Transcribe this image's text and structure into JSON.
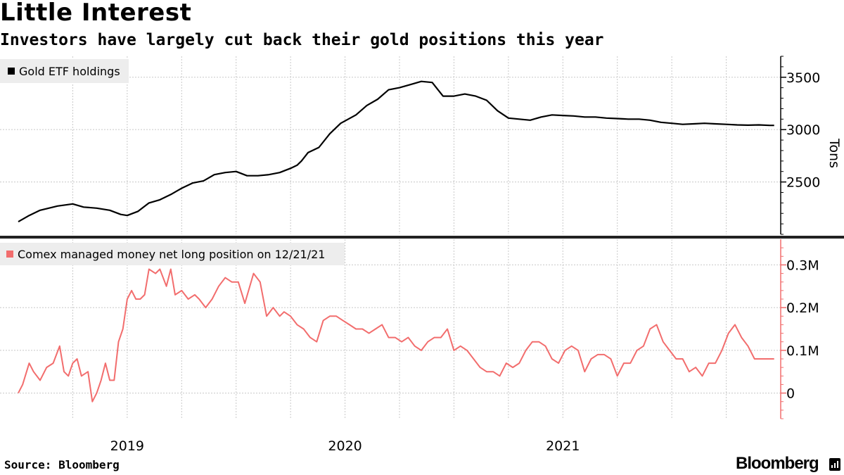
{
  "title": "Little Interest",
  "subtitle": "Investors have largely cut back their gold positions this year",
  "source": "Source: Bloomberg",
  "brand": "Bloomberg",
  "chart_data": [
    {
      "type": "line",
      "series": [
        {
          "name": "Gold ETF holdings",
          "color": "#000000",
          "x": [
            2018.5,
            2018.55,
            2018.6,
            2018.68,
            2018.75,
            2018.8,
            2018.86,
            2018.92,
            2018.97,
            2019.0,
            2019.05,
            2019.1,
            2019.15,
            2019.2,
            2019.25,
            2019.3,
            2019.35,
            2019.4,
            2019.45,
            2019.5,
            2019.55,
            2019.6,
            2019.65,
            2019.7,
            2019.75,
            2019.78,
            2019.8,
            2019.83,
            2019.88,
            2019.93,
            2019.98,
            2020.05,
            2020.1,
            2020.15,
            2020.2,
            2020.25,
            2020.3,
            2020.35,
            2020.4,
            2020.45,
            2020.5,
            2020.55,
            2020.6,
            2020.65,
            2020.7,
            2020.75,
            2020.8,
            2020.85,
            2020.9,
            2020.95,
            2021.0,
            2021.05,
            2021.1,
            2021.15,
            2021.2,
            2021.25,
            2021.3,
            2021.35,
            2021.4,
            2021.45,
            2021.5,
            2021.55,
            2021.6,
            2021.65,
            2021.7,
            2021.75,
            2021.8,
            2021.85,
            2021.9,
            2021.95,
            2021.97
          ],
          "values": [
            2120,
            2180,
            2230,
            2270,
            2290,
            2260,
            2250,
            2230,
            2190,
            2180,
            2220,
            2300,
            2330,
            2380,
            2440,
            2490,
            2510,
            2570,
            2590,
            2600,
            2560,
            2560,
            2570,
            2590,
            2630,
            2660,
            2700,
            2780,
            2830,
            2960,
            3060,
            3140,
            3230,
            3290,
            3380,
            3400,
            3430,
            3460,
            3450,
            3320,
            3320,
            3340,
            3320,
            3280,
            3180,
            3110,
            3100,
            3090,
            3120,
            3140,
            3135,
            3130,
            3120,
            3120,
            3110,
            3105,
            3100,
            3100,
            3090,
            3070,
            3060,
            3050,
            3055,
            3060,
            3055,
            3050,
            3045,
            3042,
            3045,
            3040,
            3040
          ]
        }
      ],
      "ylabel": "Tons",
      "ylim": [
        2000,
        3700
      ],
      "yticks": [
        {
          "value": 2500,
          "label": "2500"
        },
        {
          "value": 3000,
          "label": "3000"
        },
        {
          "value": 3500,
          "label": "3500"
        }
      ],
      "xlim": [
        2018.5,
        2022.0
      ],
      "xticks": [
        {
          "value": 2019,
          "label": "2019"
        },
        {
          "value": 2020,
          "label": "2020"
        },
        {
          "value": 2021,
          "label": "2021"
        }
      ],
      "legend": "top-left",
      "grid": true
    },
    {
      "type": "line",
      "series": [
        {
          "name": "Comex managed money net long position on 12/21/21",
          "color": "#f26d6d",
          "x": [
            2018.5,
            2018.52,
            2018.55,
            2018.57,
            2018.6,
            2018.63,
            2018.66,
            2018.69,
            2018.71,
            2018.73,
            2018.75,
            2018.77,
            2018.79,
            2018.82,
            2018.84,
            2018.86,
            2018.88,
            2018.9,
            2018.92,
            2018.94,
            2018.96,
            2018.98,
            2019.0,
            2019.02,
            2019.04,
            2019.06,
            2019.08,
            2019.1,
            2019.13,
            2019.15,
            2019.18,
            2019.2,
            2019.22,
            2019.25,
            2019.28,
            2019.31,
            2019.33,
            2019.36,
            2019.39,
            2019.42,
            2019.45,
            2019.48,
            2019.51,
            2019.54,
            2019.58,
            2019.61,
            2019.64,
            2019.67,
            2019.7,
            2019.72,
            2019.75,
            2019.78,
            2019.81,
            2019.84,
            2019.87,
            2019.9,
            2019.93,
            2019.96,
            2019.99,
            2020.02,
            2020.05,
            2020.08,
            2020.11,
            2020.14,
            2020.17,
            2020.2,
            2020.23,
            2020.26,
            2020.29,
            2020.32,
            2020.35,
            2020.38,
            2020.41,
            2020.44,
            2020.47,
            2020.5,
            2020.53,
            2020.56,
            2020.59,
            2020.62,
            2020.65,
            2020.68,
            2020.71,
            2020.74,
            2020.77,
            2020.8,
            2020.83,
            2020.86,
            2020.89,
            2020.92,
            2020.95,
            2020.98,
            2021.01,
            2021.04,
            2021.07,
            2021.1,
            2021.13,
            2021.16,
            2021.19,
            2021.22,
            2021.25,
            2021.28,
            2021.31,
            2021.34,
            2021.37,
            2021.4,
            2021.43,
            2021.46,
            2021.49,
            2021.52,
            2021.55,
            2021.58,
            2021.61,
            2021.64,
            2021.67,
            2021.7,
            2021.73,
            2021.76,
            2021.79,
            2021.82,
            2021.85,
            2021.88,
            2021.91,
            2021.94,
            2021.97
          ],
          "values": [
            0.0,
            0.02,
            0.07,
            0.05,
            0.03,
            0.06,
            0.07,
            0.11,
            0.05,
            0.04,
            0.07,
            0.08,
            0.04,
            0.05,
            -0.02,
            0.0,
            0.03,
            0.07,
            0.03,
            0.03,
            0.12,
            0.15,
            0.22,
            0.24,
            0.22,
            0.22,
            0.23,
            0.29,
            0.28,
            0.29,
            0.25,
            0.29,
            0.23,
            0.24,
            0.22,
            0.23,
            0.22,
            0.2,
            0.22,
            0.25,
            0.27,
            0.26,
            0.26,
            0.21,
            0.28,
            0.26,
            0.18,
            0.2,
            0.18,
            0.19,
            0.18,
            0.16,
            0.15,
            0.13,
            0.12,
            0.17,
            0.18,
            0.18,
            0.17,
            0.16,
            0.15,
            0.15,
            0.14,
            0.15,
            0.16,
            0.13,
            0.13,
            0.12,
            0.13,
            0.11,
            0.1,
            0.12,
            0.13,
            0.13,
            0.15,
            0.1,
            0.11,
            0.1,
            0.08,
            0.06,
            0.05,
            0.05,
            0.04,
            0.07,
            0.06,
            0.07,
            0.1,
            0.12,
            0.12,
            0.11,
            0.08,
            0.07,
            0.1,
            0.11,
            0.1,
            0.05,
            0.08,
            0.09,
            0.09,
            0.08,
            0.04,
            0.07,
            0.07,
            0.1,
            0.11,
            0.15,
            0.16,
            0.12,
            0.1,
            0.08,
            0.08,
            0.05,
            0.06,
            0.04,
            0.07,
            0.07,
            0.1,
            0.14,
            0.16,
            0.13,
            0.11,
            0.08,
            0.08,
            0.08,
            0.08
          ],
          "values_note": "millions of contracts (M)"
        }
      ],
      "ylim": [
        -0.06,
        0.36
      ],
      "yticks": [
        {
          "value": 0,
          "label": "0"
        },
        {
          "value": 0.1,
          "label": "0.1M"
        },
        {
          "value": 0.2,
          "label": "0.2M"
        },
        {
          "value": 0.3,
          "label": "0.3M"
        }
      ],
      "xlim": [
        2018.5,
        2022.0
      ],
      "xticks": [
        {
          "value": 2019,
          "label": "2019"
        },
        {
          "value": 2020,
          "label": "2020"
        },
        {
          "value": 2021,
          "label": "2021"
        }
      ],
      "legend": "top-left",
      "grid": true
    }
  ]
}
